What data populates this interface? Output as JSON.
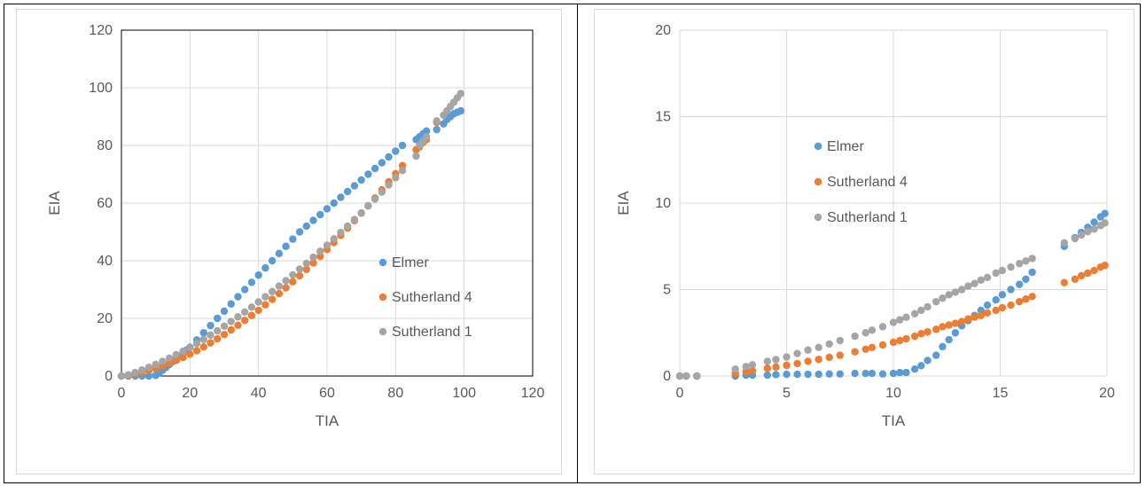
{
  "chart_data": [
    {
      "type": "scatter",
      "title": "",
      "xlabel": "TIA",
      "ylabel": "EIA",
      "xlim": [
        0,
        120
      ],
      "ylim": [
        0,
        120
      ],
      "xticks": [
        0,
        20,
        40,
        60,
        80,
        100,
        120
      ],
      "yticks": [
        0,
        20,
        40,
        60,
        80,
        100,
        120
      ],
      "grid": true,
      "legend": "right",
      "series": [
        {
          "name": "Elmer",
          "color": "#5B9BD5",
          "x": [
            0,
            2,
            4,
            6,
            8,
            10,
            11,
            12,
            13,
            14,
            15,
            16,
            17,
            18,
            19,
            20,
            22,
            24,
            26,
            28,
            30,
            32,
            34,
            36,
            38,
            40,
            42,
            44,
            46,
            48,
            50,
            52,
            54,
            56,
            58,
            60,
            62,
            64,
            66,
            68,
            70,
            72,
            74,
            76,
            78,
            80,
            82,
            86,
            87,
            88,
            89,
            92,
            94,
            95,
            96,
            97,
            98,
            99
          ],
          "y": [
            0,
            0,
            0,
            0,
            0,
            0.2,
            1,
            2,
            3,
            4,
            5,
            6,
            7,
            8,
            9,
            10,
            12.5,
            15,
            17.5,
            20,
            22.5,
            25,
            27.5,
            30,
            32.5,
            35,
            37.5,
            40,
            42.5,
            45,
            47.5,
            50,
            52,
            54,
            56,
            58,
            60,
            62,
            64,
            66,
            68,
            70,
            72,
            74,
            76,
            78,
            80,
            82,
            83,
            84,
            85,
            85.5,
            87.5,
            89,
            90,
            91,
            91.5,
            92
          ]
        },
        {
          "name": "Sutherland 4",
          "color": "#ED7D31",
          "x": [
            0,
            2,
            4,
            6,
            8,
            10,
            12,
            14,
            16,
            18,
            20,
            22,
            24,
            26,
            28,
            30,
            32,
            34,
            36,
            38,
            40,
            42,
            44,
            46,
            48,
            50,
            52,
            54,
            56,
            58,
            60,
            62,
            64,
            66,
            68,
            70,
            72,
            74,
            76,
            78,
            80,
            82,
            86,
            87,
            88,
            89,
            92
          ],
          "y": [
            0,
            0.3,
            0.7,
            1.2,
            1.9,
            2.6,
            3.5,
            4.4,
            5.4,
            6.4,
            7.6,
            8.8,
            10.1,
            11.5,
            12.9,
            14.4,
            16,
            17.6,
            19.3,
            21,
            22.8,
            24.7,
            26.6,
            28.6,
            30.6,
            32.7,
            34.8,
            37,
            39.2,
            41.5,
            43.9,
            46.3,
            48.8,
            51.3,
            53.9,
            56.5,
            59.1,
            61.8,
            64.6,
            67.4,
            70.2,
            73,
            78.5,
            79.5,
            81,
            82,
            88
          ]
        },
        {
          "name": "Sutherland 1",
          "color": "#A5A5A5",
          "x": [
            0,
            2,
            4,
            6,
            8,
            10,
            12,
            14,
            16,
            18,
            20,
            22,
            24,
            26,
            28,
            30,
            32,
            34,
            36,
            38,
            40,
            42,
            44,
            46,
            48,
            50,
            52,
            54,
            56,
            58,
            60,
            62,
            64,
            66,
            68,
            70,
            72,
            74,
            76,
            78,
            80,
            82,
            86,
            87,
            88,
            89,
            92,
            94,
            95,
            96,
            97,
            98,
            99
          ],
          "y": [
            0,
            0.4,
            1.2,
            2.1,
            3,
            4,
            5.1,
            6.2,
            7.4,
            8.6,
            9.9,
            11.3,
            12.7,
            14.2,
            15.7,
            17.3,
            18.9,
            20.5,
            22.2,
            23.9,
            25.7,
            27.5,
            29.3,
            31.2,
            33.1,
            35.1,
            37.1,
            39.1,
            41.2,
            43.3,
            45.4,
            47.6,
            49.8,
            52,
            54.3,
            56.6,
            59,
            61.4,
            63.8,
            66.3,
            68.8,
            71.3,
            76.3,
            80,
            81.5,
            83,
            88.5,
            90.5,
            92,
            93.5,
            95,
            96.5,
            98
          ]
        }
      ]
    },
    {
      "type": "scatter",
      "title": "",
      "xlabel": "TIA",
      "ylabel": "EIA",
      "xlim": [
        0,
        20
      ],
      "ylim": [
        0,
        20
      ],
      "xticks": [
        0,
        5,
        10,
        15,
        20
      ],
      "yticks": [
        0,
        5,
        10,
        15,
        20
      ],
      "grid": true,
      "legend": "upper-left",
      "series": [
        {
          "name": "Elmer",
          "color": "#5B9BD5",
          "x": [
            0,
            0.3,
            0.8,
            2.6,
            3.1,
            3.4,
            4.1,
            4.5,
            5,
            5.5,
            6,
            6.5,
            7,
            7.5,
            8.2,
            8.7,
            9,
            9.5,
            10,
            10.3,
            10.6,
            11,
            11.3,
            11.6,
            12,
            12.3,
            12.6,
            12.9,
            13.2,
            13.5,
            13.8,
            14.1,
            14.4,
            14.8,
            15.1,
            15.5,
            15.9,
            16.2,
            16.5,
            18,
            18.5,
            18.8,
            19.1,
            19.4,
            19.7,
            19.9
          ],
          "y": [
            0,
            0,
            0,
            0,
            0.05,
            0.05,
            0.05,
            0.08,
            0.1,
            0.1,
            0.1,
            0.1,
            0.12,
            0.12,
            0.15,
            0.15,
            0.15,
            0.12,
            0.15,
            0.2,
            0.2,
            0.4,
            0.6,
            0.9,
            1.2,
            1.7,
            2.1,
            2.5,
            2.9,
            3.2,
            3.5,
            3.8,
            4.1,
            4.4,
            4.7,
            5,
            5.3,
            5.6,
            6,
            7.5,
            8,
            8.3,
            8.6,
            8.9,
            9.2,
            9.4
          ]
        },
        {
          "name": "Sutherland 4",
          "color": "#ED7D31",
          "x": [
            0,
            0.3,
            0.8,
            2.6,
            3.1,
            3.4,
            4.1,
            4.5,
            5,
            5.5,
            6,
            6.5,
            7,
            7.5,
            8.2,
            8.7,
            9,
            9.5,
            10,
            10.3,
            10.6,
            11,
            11.3,
            11.6,
            12,
            12.3,
            12.6,
            12.9,
            13.2,
            13.5,
            13.8,
            14.1,
            14.4,
            14.8,
            15.1,
            15.5,
            15.9,
            16.2,
            16.5,
            18,
            18.5,
            18.8,
            19.1,
            19.4,
            19.7,
            19.9
          ],
          "y": [
            0,
            0,
            0,
            0.15,
            0.25,
            0.3,
            0.45,
            0.52,
            0.62,
            0.72,
            0.85,
            0.96,
            1.08,
            1.2,
            1.4,
            1.55,
            1.65,
            1.8,
            1.95,
            2.05,
            2.15,
            2.3,
            2.45,
            2.55,
            2.7,
            2.85,
            2.95,
            3.05,
            3.15,
            3.3,
            3.4,
            3.5,
            3.65,
            3.8,
            3.95,
            4.1,
            4.3,
            4.45,
            4.6,
            5.4,
            5.6,
            5.8,
            5.95,
            6.1,
            6.3,
            6.4
          ]
        },
        {
          "name": "Sutherland 1",
          "color": "#A5A5A5",
          "x": [
            0,
            0.3,
            0.8,
            2.6,
            3.1,
            3.4,
            4.1,
            4.5,
            5,
            5.5,
            6,
            6.5,
            7,
            7.5,
            8.2,
            8.7,
            9,
            9.5,
            10,
            10.3,
            10.6,
            11,
            11.3,
            11.6,
            12,
            12.3,
            12.6,
            12.9,
            13.2,
            13.5,
            13.8,
            14.1,
            14.4,
            14.8,
            15.1,
            15.5,
            15.9,
            16.2,
            16.5,
            18,
            18.5,
            18.8,
            19.1,
            19.4,
            19.7,
            19.9
          ],
          "y": [
            0,
            0,
            0,
            0.4,
            0.55,
            0.65,
            0.85,
            0.95,
            1.1,
            1.3,
            1.5,
            1.65,
            1.85,
            2.05,
            2.3,
            2.5,
            2.65,
            2.85,
            3.1,
            3.25,
            3.4,
            3.6,
            3.8,
            4,
            4.3,
            4.5,
            4.7,
            4.85,
            5,
            5.2,
            5.35,
            5.55,
            5.7,
            5.95,
            6.1,
            6.3,
            6.5,
            6.65,
            6.8,
            7.7,
            7.95,
            8.15,
            8.35,
            8.5,
            8.7,
            8.85
          ]
        }
      ]
    }
  ]
}
